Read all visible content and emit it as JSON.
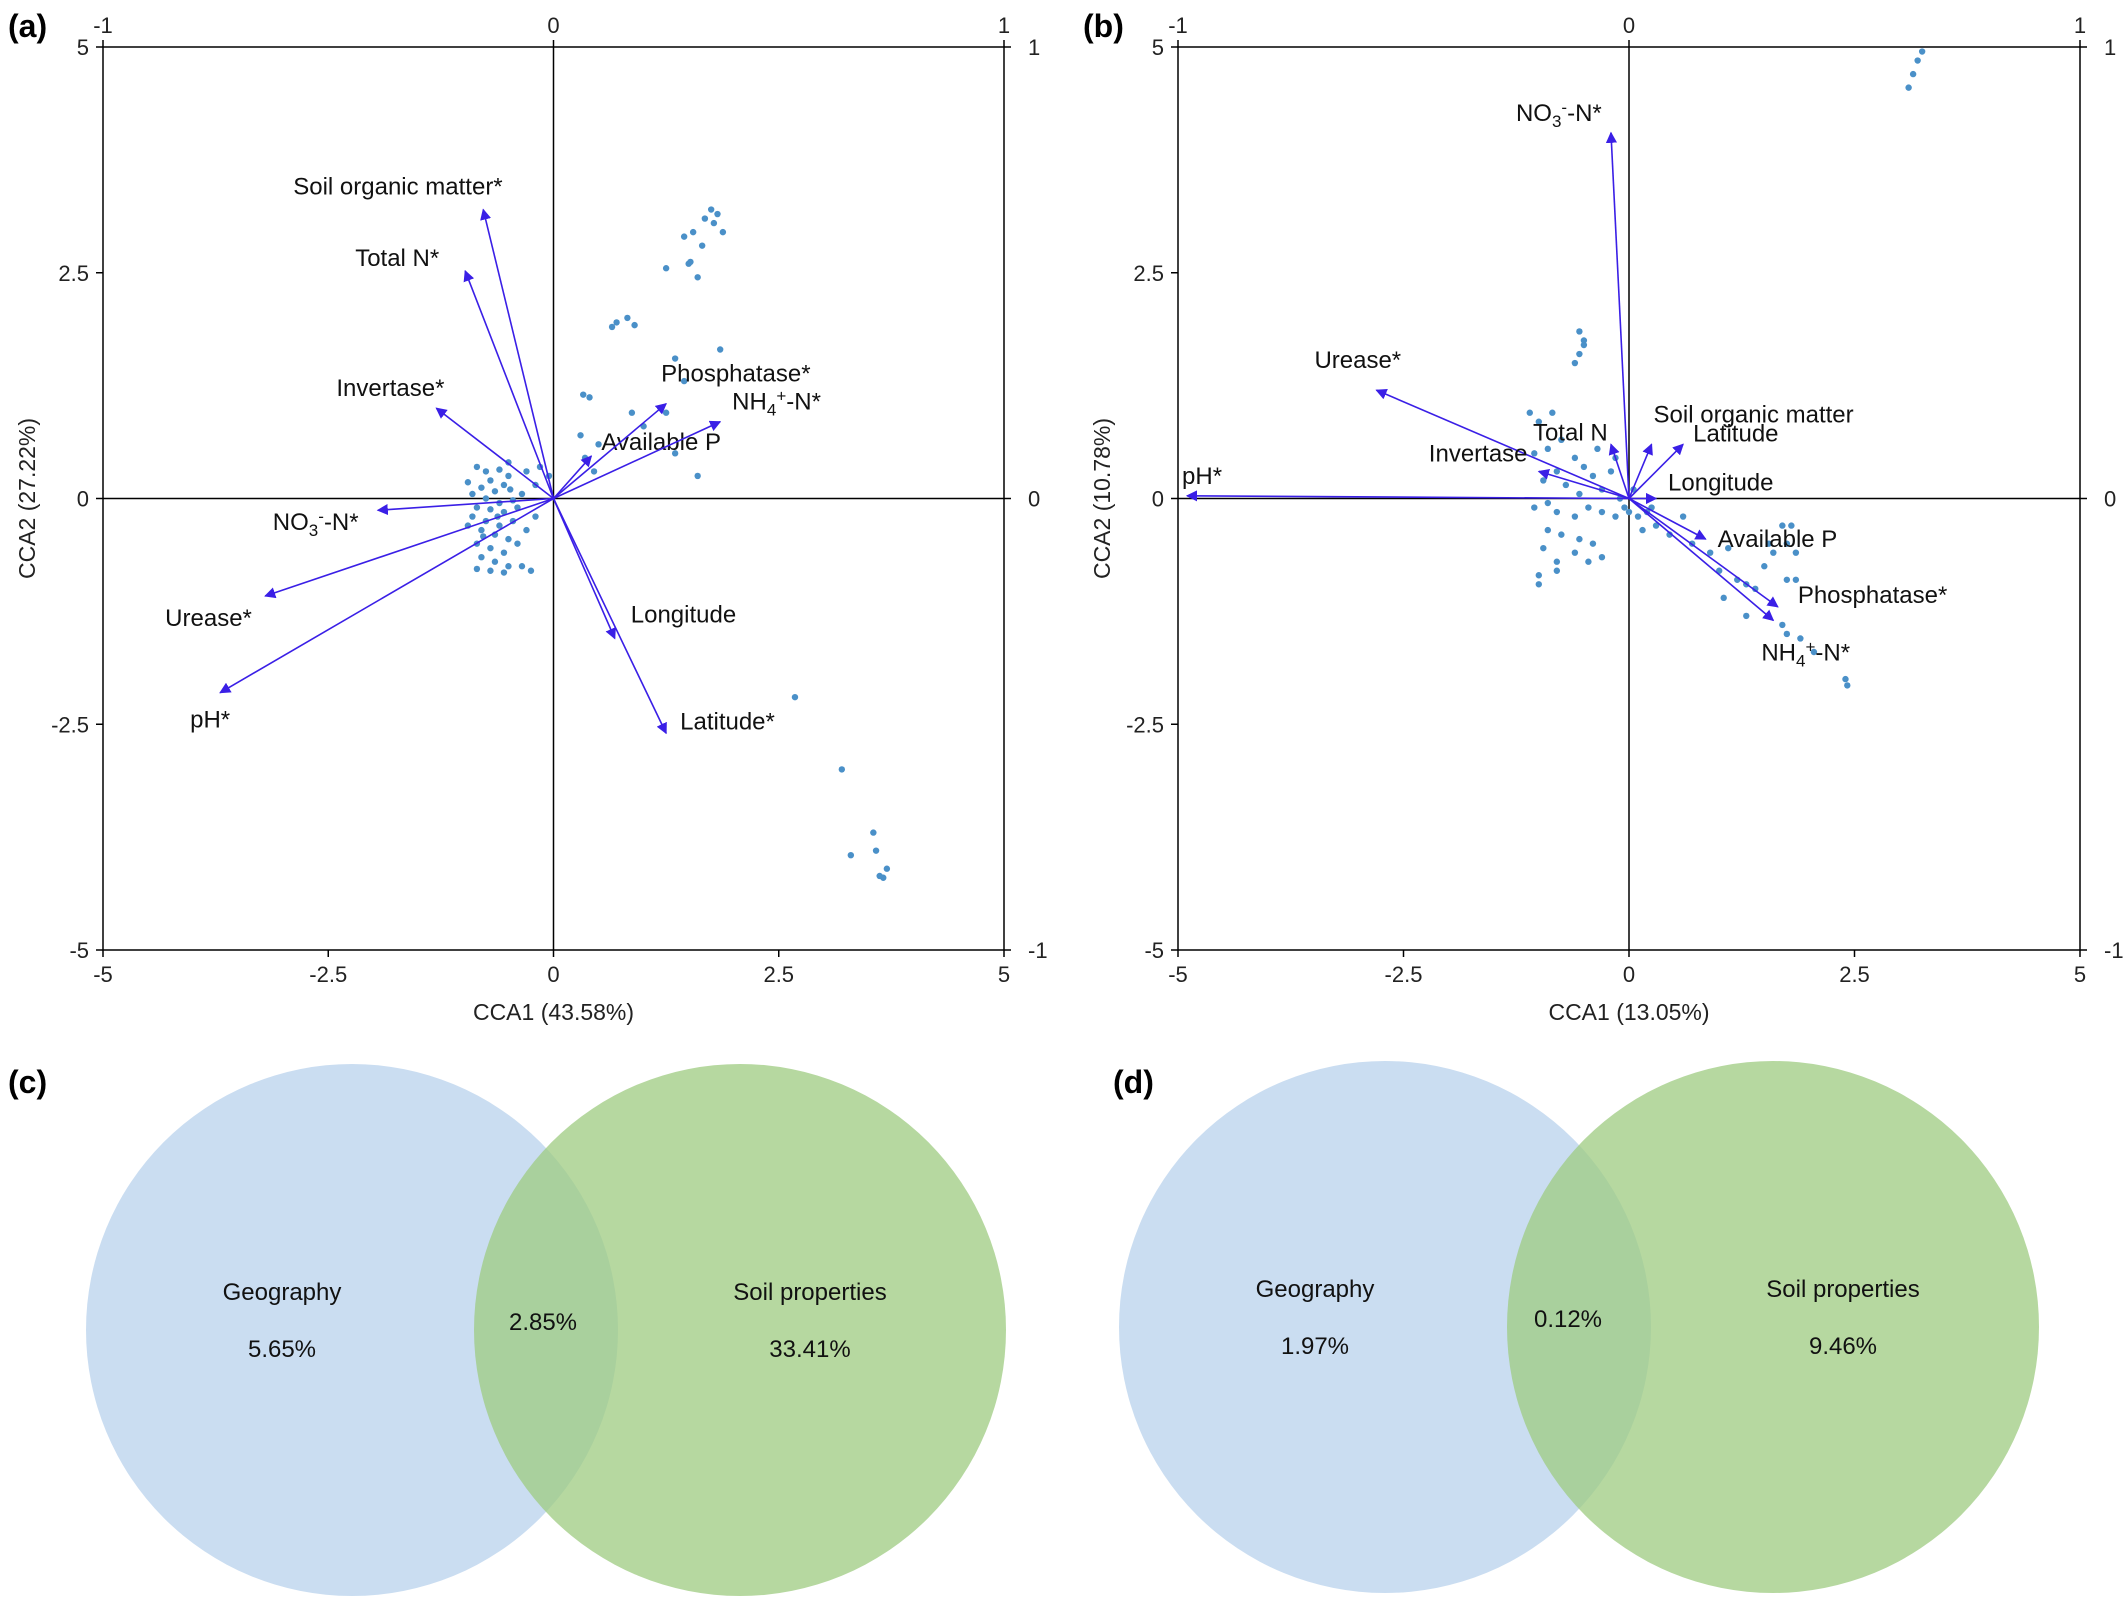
{
  "chart_data": [
    {
      "type": "scatter",
      "panel_label": "(a)",
      "xlabel": "CCA1 (43.58%)",
      "ylabel": "CCA2 (27.22%)",
      "xlim": [
        -5,
        5
      ],
      "ylim": [
        -5,
        5
      ],
      "x_ticks": [
        "-5",
        "-2.5",
        "0",
        "2.5",
        "5"
      ],
      "y_ticks": [
        "5",
        "2.5",
        "0",
        "-2.5",
        "-5"
      ],
      "top_ticks": [
        "-1",
        "0",
        "1"
      ],
      "right_ticks": [
        "1",
        "0",
        "-1"
      ],
      "grid": false,
      "arrows": [
        {
          "label": "Soil organic matter*",
          "x": -0.78,
          "y": 3.2
        },
        {
          "label": "Total N*",
          "x": -0.98,
          "y": 2.52
        },
        {
          "label": "Invertase*",
          "x": -1.3,
          "y": 1.0
        },
        {
          "label": "Available P",
          "x": 0.42,
          "y": 0.47
        },
        {
          "label": "Phosphatase*",
          "x": 1.25,
          "y": 1.05
        },
        {
          "label": "NH4⁺-N*",
          "x": 1.85,
          "y": 0.85
        },
        {
          "label": "NO3⁻-N*",
          "x": -1.95,
          "y": -0.13
        },
        {
          "label": "Urease*",
          "x": -3.2,
          "y": -1.08
        },
        {
          "label": "pH*",
          "x": -3.7,
          "y": -2.15
        },
        {
          "label": "Longitude",
          "x": 0.68,
          "y": -1.55
        },
        {
          "label": "Latitude*",
          "x": 1.25,
          "y": -2.6
        }
      ],
      "points": [
        [
          -0.85,
          0.35
        ],
        [
          -0.75,
          0.3
        ],
        [
          -0.6,
          0.32
        ],
        [
          -0.7,
          0.2
        ],
        [
          -0.55,
          0.15
        ],
        [
          -0.5,
          0.25
        ],
        [
          -0.8,
          0.12
        ],
        [
          -0.65,
          0.08
        ],
        [
          -0.9,
          0.05
        ],
        [
          -0.75,
          0.0
        ],
        [
          -0.6,
          -0.05
        ],
        [
          -0.45,
          -0.02
        ],
        [
          -0.35,
          0.05
        ],
        [
          -0.85,
          -0.1
        ],
        [
          -0.7,
          -0.12
        ],
        [
          -0.55,
          -0.15
        ],
        [
          -0.4,
          -0.1
        ],
        [
          -0.9,
          -0.2
        ],
        [
          -0.75,
          -0.25
        ],
        [
          -0.6,
          -0.3
        ],
        [
          -0.45,
          -0.25
        ],
        [
          -0.8,
          -0.35
        ],
        [
          -0.65,
          -0.4
        ],
        [
          -0.5,
          -0.45
        ],
        [
          -0.85,
          -0.5
        ],
        [
          -0.7,
          -0.55
        ],
        [
          -0.55,
          -0.6
        ],
        [
          -0.4,
          -0.5
        ],
        [
          -0.8,
          -0.65
        ],
        [
          -0.65,
          -0.7
        ],
        [
          -0.5,
          -0.75
        ],
        [
          -0.85,
          -0.78
        ],
        [
          -0.7,
          -0.8
        ],
        [
          -0.55,
          -0.82
        ],
        [
          -0.35,
          -0.75
        ],
        [
          -0.25,
          -0.8
        ],
        [
          -0.95,
          -0.3
        ],
        [
          -0.95,
          0.18
        ],
        [
          -0.5,
          0.4
        ],
        [
          -0.3,
          0.3
        ],
        [
          -0.2,
          0.15
        ],
        [
          -0.15,
          0.35
        ],
        [
          -0.05,
          0.25
        ],
        [
          -0.3,
          -0.35
        ],
        [
          -0.2,
          -0.2
        ],
        [
          -0.62,
          -0.2
        ],
        [
          -0.78,
          -0.42
        ],
        [
          -0.48,
          0.1
        ],
        [
          0.3,
          0.7
        ],
        [
          0.33,
          1.15
        ],
        [
          0.4,
          1.12
        ],
        [
          0.35,
          0.45
        ],
        [
          0.5,
          0.6
        ],
        [
          0.45,
          0.3
        ],
        [
          0.7,
          1.95
        ],
        [
          0.82,
          2.0
        ],
        [
          0.9,
          1.92
        ],
        [
          0.65,
          1.9
        ],
        [
          0.87,
          0.95
        ],
        [
          1.0,
          0.8
        ],
        [
          1.25,
          2.55
        ],
        [
          1.35,
          0.5
        ],
        [
          1.35,
          1.55
        ],
        [
          1.5,
          2.6
        ],
        [
          1.52,
          2.62
        ],
        [
          1.6,
          2.45
        ],
        [
          1.45,
          2.9
        ],
        [
          1.55,
          2.95
        ],
        [
          1.68,
          3.1
        ],
        [
          1.75,
          3.2
        ],
        [
          1.78,
          3.05
        ],
        [
          1.82,
          3.15
        ],
        [
          1.88,
          2.95
        ],
        [
          1.65,
          2.8
        ],
        [
          1.85,
          1.65
        ],
        [
          1.45,
          1.3
        ],
        [
          1.25,
          0.95
        ],
        [
          1.6,
          0.25
        ],
        [
          2.68,
          -2.2
        ],
        [
          3.2,
          -3.0
        ],
        [
          3.3,
          -3.95
        ],
        [
          3.55,
          -3.7
        ],
        [
          3.58,
          -3.9
        ],
        [
          3.62,
          -4.18
        ],
        [
          3.66,
          -4.2
        ],
        [
          3.7,
          -4.1
        ]
      ]
    },
    {
      "type": "scatter",
      "panel_label": "(b)",
      "xlabel": "CCA1 (13.05%)",
      "ylabel": "CCA2 (10.78%)",
      "xlim": [
        -5,
        5
      ],
      "ylim": [
        -5,
        5
      ],
      "x_ticks": [
        "-5",
        "-2.5",
        "0",
        "2.5",
        "5"
      ],
      "y_ticks": [
        "5",
        "2.5",
        "0",
        "-2.5",
        "-5"
      ],
      "top_ticks": [
        "-1",
        "0",
        "1"
      ],
      "right_ticks": [
        "1",
        "0",
        "-1"
      ],
      "grid": false,
      "arrows": [
        {
          "label": "NO3⁻-N*",
          "x": -0.2,
          "y": 4.05
        },
        {
          "label": "Urease*",
          "x": -2.8,
          "y": 1.2
        },
        {
          "label": "pH*",
          "x": -4.9,
          "y": 0.03
        },
        {
          "label": "Total N",
          "x": -0.2,
          "y": 0.6
        },
        {
          "label": "Invertase",
          "x": -1.0,
          "y": 0.3
        },
        {
          "label": "Soil organic matter",
          "x": 0.25,
          "y": 0.6
        },
        {
          "label": "Latitude",
          "x": 0.6,
          "y": 0.6
        },
        {
          "label": "Longitude",
          "x": 0.3,
          "y": 0.0
        },
        {
          "label": "Available P",
          "x": 0.85,
          "y": -0.45
        },
        {
          "label": "Phosphatase*",
          "x": 1.65,
          "y": -1.2
        },
        {
          "label": "NH4⁺-N*",
          "x": 1.6,
          "y": -1.35
        }
      ],
      "points": [
        [
          -1.1,
          0.95
        ],
        [
          -1.0,
          0.85
        ],
        [
          -0.85,
          0.95
        ],
        [
          -0.75,
          0.65
        ],
        [
          -0.9,
          0.55
        ],
        [
          -1.05,
          0.5
        ],
        [
          -0.6,
          0.45
        ],
        [
          -0.5,
          0.35
        ],
        [
          -0.8,
          0.3
        ],
        [
          -0.95,
          0.2
        ],
        [
          -0.7,
          0.15
        ],
        [
          -0.4,
          0.25
        ],
        [
          -0.3,
          0.1
        ],
        [
          -0.2,
          0.3
        ],
        [
          -0.55,
          0.05
        ],
        [
          -0.9,
          -0.05
        ],
        [
          -1.05,
          -0.1
        ],
        [
          -0.8,
          -0.15
        ],
        [
          -0.6,
          -0.2
        ],
        [
          -0.45,
          -0.1
        ],
        [
          -0.3,
          -0.15
        ],
        [
          -0.15,
          -0.2
        ],
        [
          -0.9,
          -0.35
        ],
        [
          -0.75,
          -0.4
        ],
        [
          -0.55,
          -0.45
        ],
        [
          -0.4,
          -0.5
        ],
        [
          -0.95,
          -0.55
        ],
        [
          -0.8,
          -0.7
        ],
        [
          -0.6,
          -0.6
        ],
        [
          -0.45,
          -0.7
        ],
        [
          -1.0,
          -0.85
        ],
        [
          -1.0,
          -0.95
        ],
        [
          -0.8,
          -0.8
        ],
        [
          -0.3,
          -0.65
        ],
        [
          -0.55,
          1.85
        ],
        [
          -0.5,
          1.75
        ],
        [
          -0.55,
          1.6
        ],
        [
          -0.6,
          1.5
        ],
        [
          -0.5,
          1.7
        ],
        [
          -0.05,
          -0.1
        ],
        [
          0.0,
          -0.15
        ],
        [
          0.1,
          -0.2
        ],
        [
          0.2,
          -0.15
        ],
        [
          0.05,
          0.1
        ],
        [
          -0.1,
          0.0
        ],
        [
          0.3,
          -0.3
        ],
        [
          0.15,
          -0.35
        ],
        [
          0.45,
          -0.4
        ],
        [
          0.6,
          -0.2
        ],
        [
          0.7,
          -0.5
        ],
        [
          0.9,
          -0.6
        ],
        [
          1.0,
          -0.8
        ],
        [
          1.1,
          -0.55
        ],
        [
          1.2,
          -0.9
        ],
        [
          1.3,
          -0.95
        ],
        [
          1.4,
          -1.0
        ],
        [
          1.5,
          -0.75
        ],
        [
          1.55,
          -0.5
        ],
        [
          1.6,
          -0.6
        ],
        [
          1.7,
          -0.3
        ],
        [
          1.75,
          -0.5
        ],
        [
          1.8,
          -0.3
        ],
        [
          1.85,
          -0.6
        ],
        [
          1.85,
          -0.9
        ],
        [
          1.7,
          -1.4
        ],
        [
          1.75,
          -1.5
        ],
        [
          1.9,
          -1.55
        ],
        [
          1.75,
          -0.9
        ],
        [
          2.05,
          -1.7
        ],
        [
          1.05,
          -1.1
        ],
        [
          1.3,
          -1.3
        ],
        [
          2.4,
          -2.0
        ],
        [
          2.42,
          -2.07
        ],
        [
          3.1,
          4.55
        ],
        [
          3.15,
          4.7
        ],
        [
          3.2,
          4.85
        ],
        [
          3.25,
          4.95
        ],
        [
          -0.35,
          0.55
        ],
        [
          -0.15,
          0.45
        ],
        [
          0.25,
          -0.1
        ]
      ]
    }
  ],
  "venn": [
    {
      "panel_label": "(c)",
      "left": {
        "label": "Geography",
        "value": "5.65%",
        "color": "#b8d2ec"
      },
      "overlap": {
        "value": "2.85%"
      },
      "right": {
        "label": "Soil properties",
        "value": "33.41%",
        "color": "#9dcb80"
      }
    },
    {
      "panel_label": "(d)",
      "left": {
        "label": "Geography",
        "value": "1.97%",
        "color": "#b8d2ec"
      },
      "overlap": {
        "value": "0.12%"
      },
      "right": {
        "label": "Soil properties",
        "value": "9.46%",
        "color": "#9dcb80"
      }
    }
  ],
  "colors": {
    "arrow": "#3a1fe6",
    "point": "#4a90c8",
    "axis": "#000000"
  }
}
